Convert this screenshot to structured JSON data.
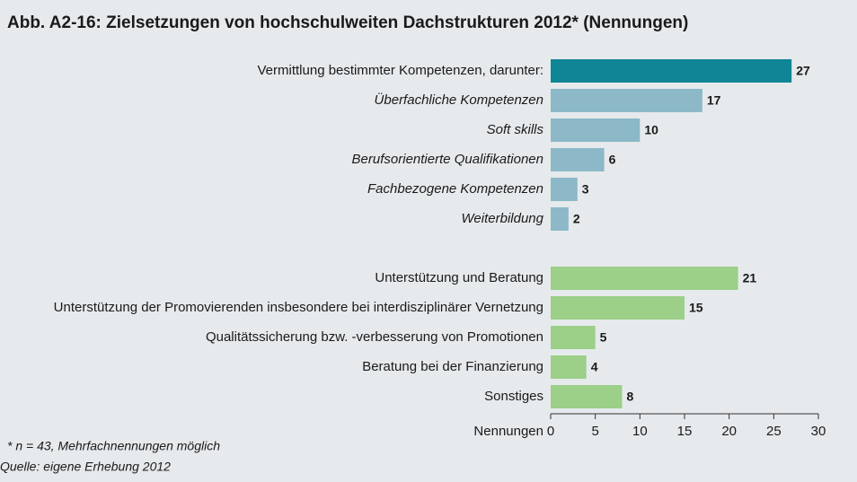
{
  "chart_data": {
    "type": "hbar",
    "title": "Abb. A2-16:  Zielsetzungen von hochschulweiten Dachstrukturen 2012* (Nennungen)",
    "categories": [
      "Vermittlung bestimmter Kompetenzen, darunter:",
      "Überfachliche Kompetenzen",
      "Soft skills",
      "Berufsorientierte Qualifikationen",
      "Fachbezogene Kompetenzen",
      "Weiterbildung",
      null,
      "Unterstützung und Beratung",
      "Unterstützung der Promovierenden insbesondere bei interdisziplinärer Vernetzung",
      "Qualitätssicherung bzw. -verbesserung von Promotionen",
      "Beratung bei der Finanzierung",
      "Sonstiges"
    ],
    "values": [
      27,
      17,
      10,
      6,
      3,
      2,
      null,
      21,
      15,
      5,
      4,
      8
    ],
    "colors": [
      "#0f8596",
      "#8cb8c7",
      "#8cb8c7",
      "#8cb8c7",
      "#8cb8c7",
      "#8cb8c7",
      null,
      "#9ccf88",
      "#9ccf88",
      "#9ccf88",
      "#9ccf88",
      "#9ccf88"
    ],
    "italic": [
      false,
      true,
      true,
      true,
      true,
      true,
      false,
      false,
      false,
      false,
      false,
      false
    ],
    "x_label": "Nennungen",
    "xlim": [
      0,
      30
    ],
    "xticks": [
      0,
      5,
      10,
      15,
      20,
      25,
      30
    ],
    "grid": false,
    "footnote": "*   n = 43, Mehrfachnennungen möglich",
    "source": "Quelle: eigene Erhebung 2012"
  }
}
